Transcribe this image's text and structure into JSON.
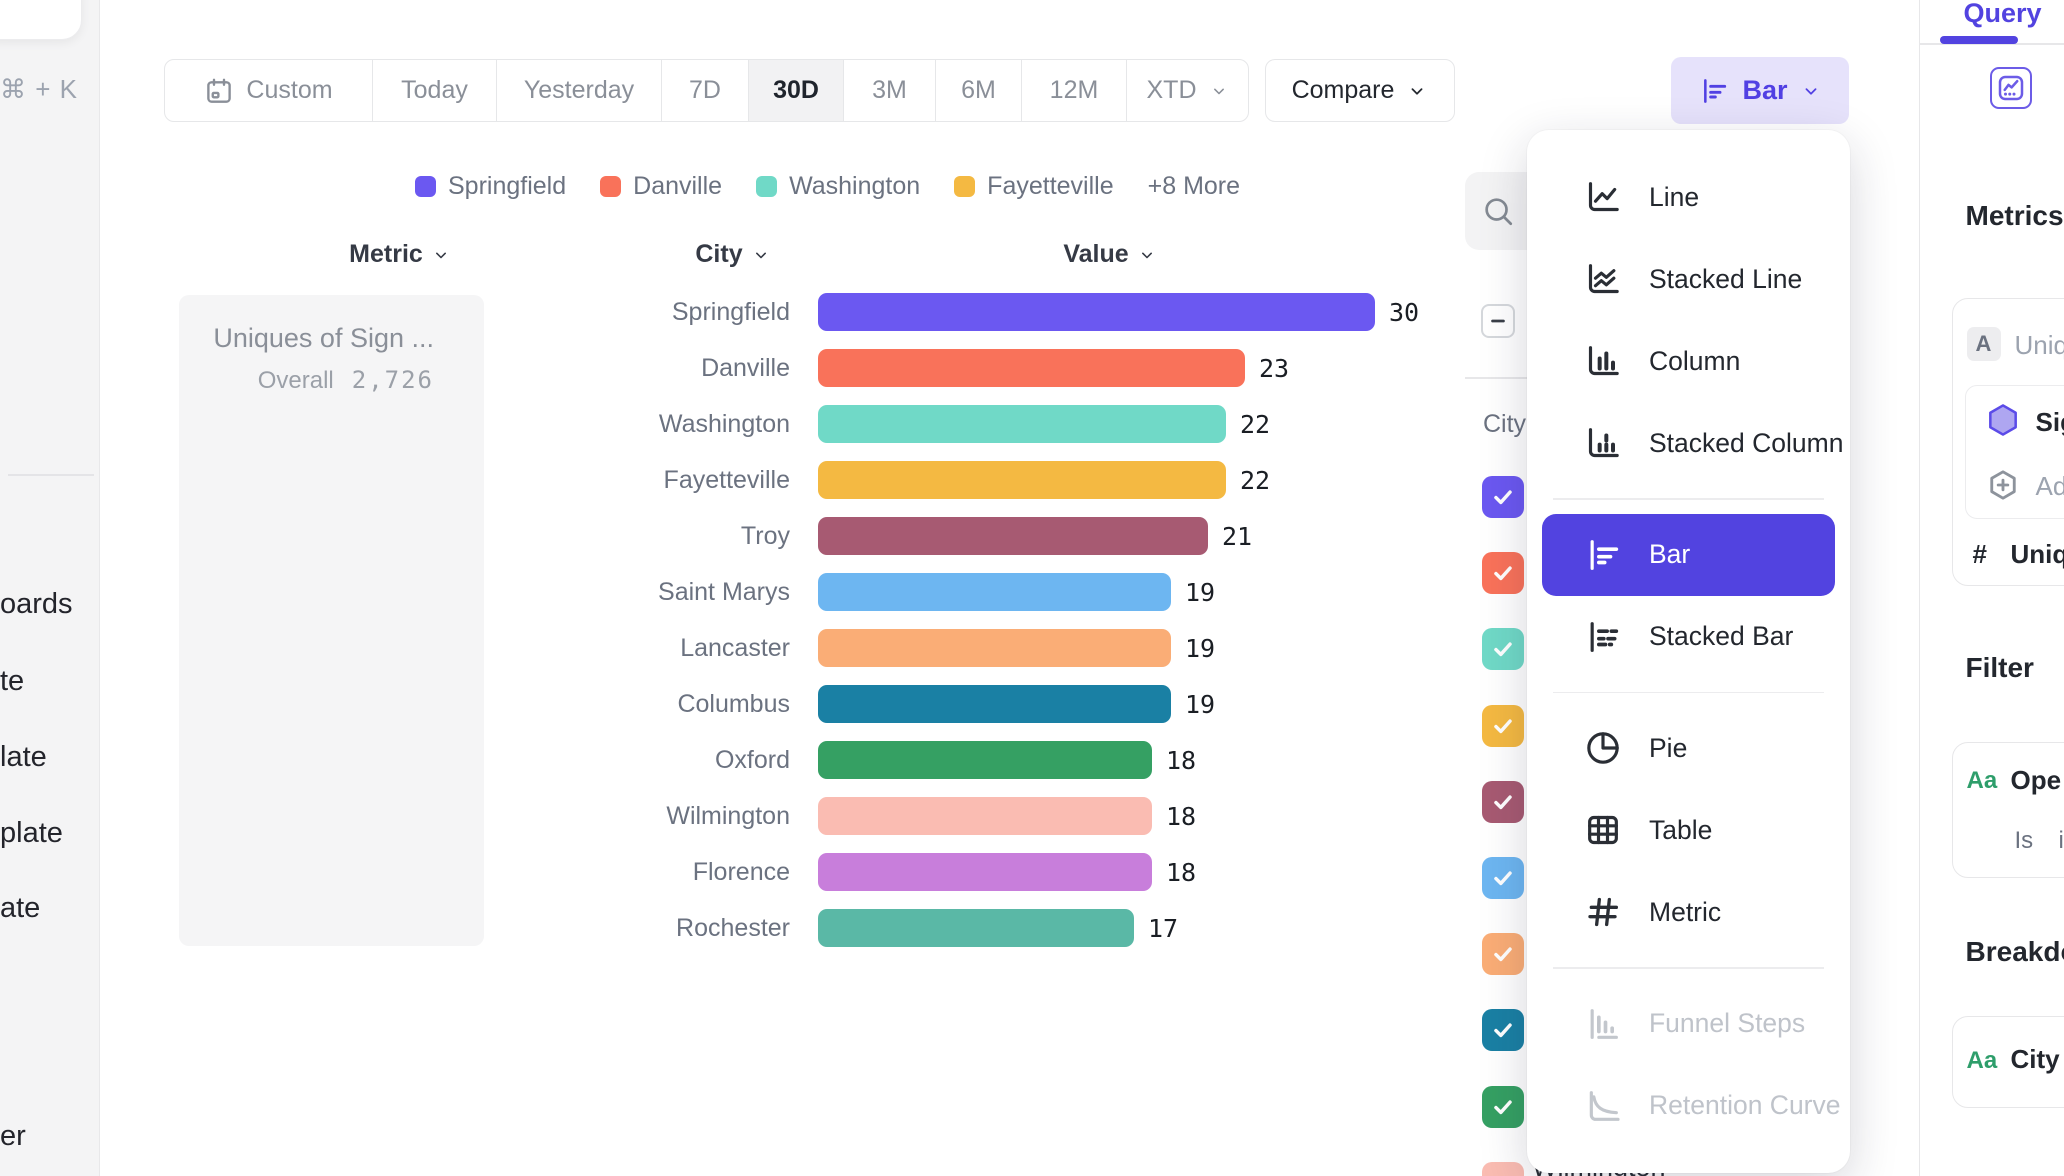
{
  "accent": {
    "purple": "#5243E0",
    "purple_light": "#E6E2FB"
  },
  "sidebar": {
    "shortcut_label": "⌘ + K",
    "menu_fragments": [
      "oards",
      "te",
      "late",
      "plate",
      "ate",
      "er"
    ]
  },
  "toolbar": {
    "date_ranges": [
      "Custom",
      "Today",
      "Yesterday",
      "7D",
      "30D",
      "3M",
      "6M",
      "12M",
      "XTD"
    ],
    "selected_range": "30D",
    "compare_label": "Compare",
    "chart_type_label": "Bar"
  },
  "legend": {
    "items": [
      {
        "label": "Springfield",
        "color": "#6B58F1"
      },
      {
        "label": "Danville",
        "color": "#F9725A"
      },
      {
        "label": "Washington",
        "color": "#70D9C7"
      },
      {
        "label": "Fayetteville",
        "color": "#F4B942"
      }
    ],
    "more_label": "+8 More"
  },
  "columns": {
    "metric": "Metric",
    "city": "City",
    "value": "Value"
  },
  "metric_card": {
    "title": "Uniques of Sign ...",
    "overall_label": "Overall",
    "overall_value": "2,726"
  },
  "chart_data": {
    "type": "bar",
    "orientation": "horizontal",
    "categories": [
      "Springfield",
      "Danville",
      "Washington",
      "Fayetteville",
      "Troy",
      "Saint Marys",
      "Lancaster",
      "Columbus",
      "Oxford",
      "Wilmington",
      "Florence",
      "Rochester"
    ],
    "values": [
      30,
      23,
      22,
      22,
      21,
      19,
      19,
      19,
      18,
      18,
      18,
      17
    ],
    "colors": [
      "#6B58F1",
      "#F9725A",
      "#70D9C7",
      "#F4B942",
      "#A75A72",
      "#6DB6F1",
      "#FAAD76",
      "#1A80A4",
      "#35A063",
      "#FABCB2",
      "#C87EDB",
      "#5AB8A6"
    ],
    "xlim": [
      0,
      30
    ],
    "value_labels_shown": true,
    "metric": "Uniques of Sign ...",
    "overall": "2,726",
    "grid": false,
    "legend_position": "top"
  },
  "series_panel": {
    "group_label": "City",
    "select_all_state": "indeterminate",
    "items": [
      {
        "color": "#6B58F1",
        "checked": true
      },
      {
        "color": "#F9725A",
        "checked": true
      },
      {
        "color": "#70D9C7",
        "checked": true
      },
      {
        "color": "#F4B942",
        "checked": true
      },
      {
        "color": "#A75A72",
        "checked": true
      },
      {
        "color": "#6DB6F1",
        "checked": true
      },
      {
        "color": "#FAAD76",
        "checked": true
      },
      {
        "color": "#1A80A4",
        "checked": true
      },
      {
        "color": "#35A063",
        "checked": true
      },
      {
        "color": "#FABCB2",
        "checked": true
      }
    ],
    "visible_item_label": "Wilmington"
  },
  "chart_menu": {
    "groups": [
      {
        "items": [
          {
            "label": "Line",
            "icon": "line-chart"
          },
          {
            "label": "Stacked Line",
            "icon": "stacked-line-chart"
          },
          {
            "label": "Column",
            "icon": "column-chart"
          },
          {
            "label": "Stacked Column",
            "icon": "stacked-column-chart"
          }
        ]
      },
      {
        "items": [
          {
            "label": "Bar",
            "icon": "bar-chart",
            "selected": true
          },
          {
            "label": "Stacked Bar",
            "icon": "stacked-bar-chart"
          }
        ]
      },
      {
        "items": [
          {
            "label": "Pie",
            "icon": "pie-chart"
          },
          {
            "label": "Table",
            "icon": "table"
          },
          {
            "label": "Metric",
            "icon": "metric-hash"
          }
        ]
      },
      {
        "items": [
          {
            "label": "Funnel Steps",
            "icon": "funnel-steps",
            "disabled": true
          },
          {
            "label": "Retention Curve",
            "icon": "retention-curve",
            "disabled": true
          }
        ]
      }
    ]
  },
  "query_panel": {
    "tab_label": "Query",
    "metrics_heading": "Metrics",
    "event_row": {
      "badge": "A",
      "label": "Uniq"
    },
    "signal_row": {
      "label": "Sig"
    },
    "add_row": {
      "label": "Ad"
    },
    "measure_row": {
      "hash": "#",
      "label": "Uniqu"
    },
    "filter_heading": "Filter",
    "filter_card": {
      "type_badge": "Aa",
      "name": "Ope",
      "operator": "Is",
      "value": "i"
    },
    "breakdown_heading": "Breakdown",
    "breakdown_card": {
      "type_badge": "Aa",
      "name": "City"
    }
  }
}
